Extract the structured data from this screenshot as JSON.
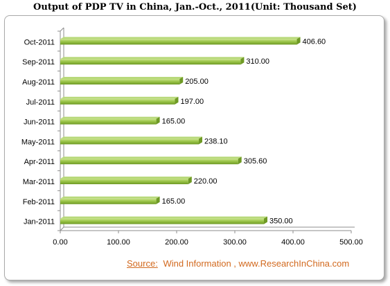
{
  "chart_data": {
    "type": "bar",
    "orientation": "horizontal",
    "title": "Output of PDP TV in China, Jan.-Oct., 2011(Unit: Thousand Set)",
    "categories": [
      "Oct-2011",
      "Sep-2011",
      "Aug-2011",
      "Jul-2011",
      "Jun-2011",
      "May-2011",
      "Apr-2011",
      "Mar-2011",
      "Feb-2011",
      "Jan-2011"
    ],
    "values": [
      406.6,
      310.0,
      205.0,
      197.0,
      165.0,
      238.1,
      305.6,
      220.0,
      165.0,
      350.0
    ],
    "value_labels": [
      "406.60",
      "310.00",
      "205.00",
      "197.00",
      "165.00",
      "238.10",
      "305.60",
      "220.00",
      "165.00",
      "350.00"
    ],
    "xlim": [
      0,
      500
    ],
    "x_ticks": [
      "0.00",
      "100.00",
      "200.00",
      "300.00",
      "400.00",
      "500.00"
    ],
    "bar_color": "#8cb83a",
    "grid": false,
    "xlabel": "",
    "ylabel": ""
  },
  "source": {
    "label": "Source:",
    "text": "Wind Information , www.ResearchInChina.com"
  }
}
